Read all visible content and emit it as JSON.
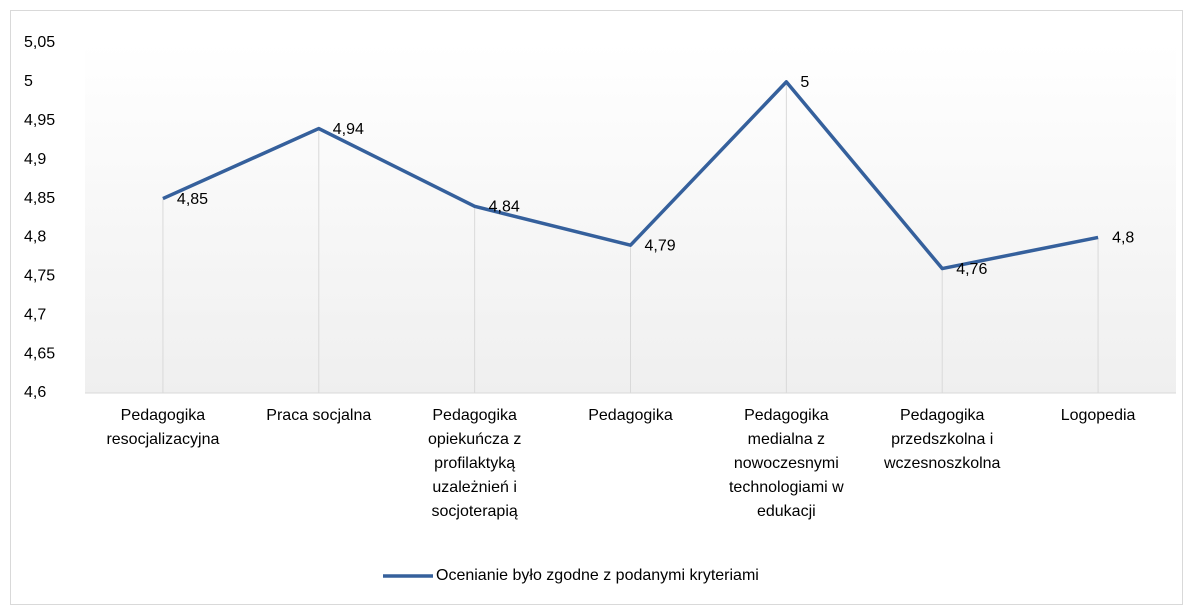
{
  "chart_data": {
    "type": "line",
    "categories": [
      "Pedagogika resocjalizacyjna",
      "Praca socjalna",
      "Pedagogika opiekuńcza z profilaktyką uzależnień i socjoterapią",
      "Pedagogika",
      "Pedagogika medialna z nowoczesnymi technologiami w edukacji",
      "Pedagogika przedszkolna i wczesnoszkolna",
      "Logopedia"
    ],
    "series": [
      {
        "name": "Ocenianie było zgodne z podanymi kryteriami",
        "color": "#35609c",
        "values": [
          4.85,
          4.94,
          4.84,
          4.79,
          5,
          4.76,
          4.8
        ],
        "value_labels": [
          "4,85",
          "4,94",
          "4,84",
          "4,79",
          "5",
          "4,76",
          "4,8"
        ]
      }
    ],
    "ylim": [
      4.6,
      5.05
    ],
    "yticks": [
      {
        "value": 4.6,
        "label": "4,6"
      },
      {
        "value": 4.65,
        "label": "4,65"
      },
      {
        "value": 4.7,
        "label": "4,7"
      },
      {
        "value": 4.75,
        "label": "4,75"
      },
      {
        "value": 4.8,
        "label": "4,8"
      },
      {
        "value": 4.85,
        "label": "4,85"
      },
      {
        "value": 4.9,
        "label": "4,9"
      },
      {
        "value": 4.95,
        "label": "4,95"
      },
      5,
      {
        "value": 5.05,
        "label": "5,05"
      }
    ],
    "legend": "bottom"
  }
}
